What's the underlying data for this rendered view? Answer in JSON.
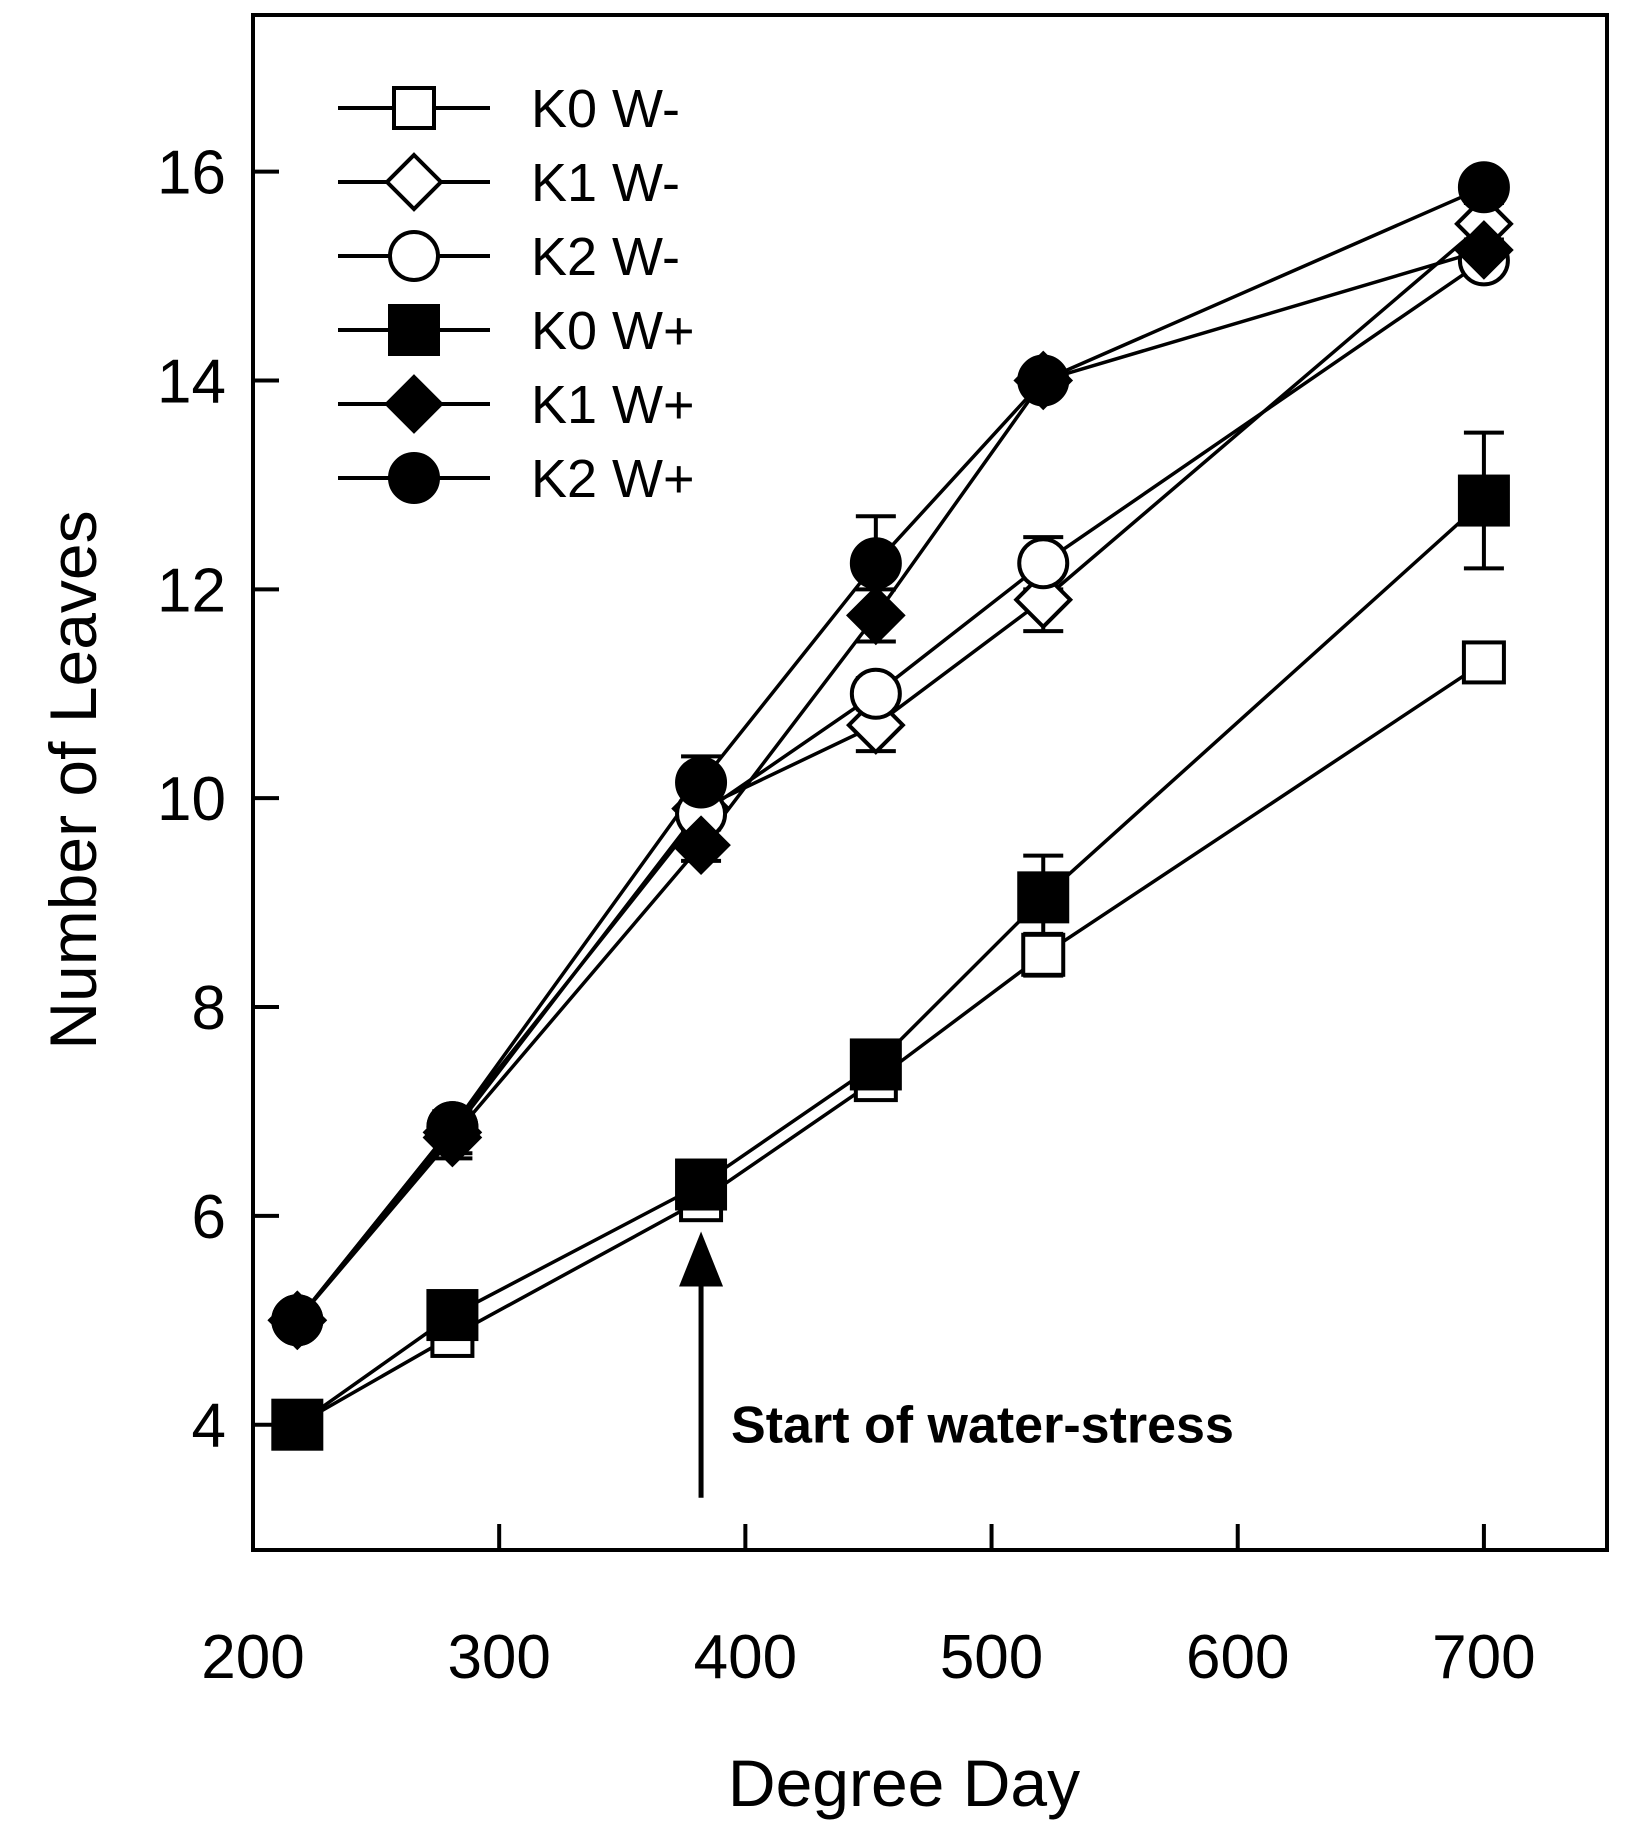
{
  "chart_data": {
    "type": "line",
    "title": "",
    "xlabel": "Degree Day",
    "ylabel": "Number of Leaves",
    "xlim": [
      200,
      750
    ],
    "ylim": [
      2.8,
      17.5
    ],
    "xticks": [
      200,
      300,
      400,
      500,
      600,
      700
    ],
    "yticks": [
      4,
      6,
      8,
      10,
      12,
      14,
      16
    ],
    "grid": false,
    "legend_position": "top-left",
    "series": [
      {
        "name": "K0 W-",
        "marker": "square",
        "filled": false,
        "points": [
          {
            "x": 218,
            "y": 4.0,
            "err": 0.05
          },
          {
            "x": 281,
            "y": 4.85,
            "err": 0.1
          },
          {
            "x": 382,
            "y": 6.15,
            "err": 0.1
          },
          {
            "x": 453,
            "y": 7.3,
            "err": 0.15
          },
          {
            "x": 521,
            "y": 8.5,
            "err": 0.2
          },
          {
            "x": 700,
            "y": 11.3,
            "err": 0.15
          }
        ]
      },
      {
        "name": "K1 W-",
        "marker": "diamond",
        "filled": false,
        "points": [
          {
            "x": 218,
            "y": 5.0,
            "err": 0.05
          },
          {
            "x": 281,
            "y": 6.8,
            "err": 0.2
          },
          {
            "x": 382,
            "y": 9.9,
            "err": 0.15
          },
          {
            "x": 453,
            "y": 10.7,
            "err": 0.25
          },
          {
            "x": 521,
            "y": 11.9,
            "err": 0.3
          },
          {
            "x": 700,
            "y": 15.5,
            "err": 0.2
          }
        ]
      },
      {
        "name": "K2 W-",
        "marker": "circle",
        "filled": false,
        "points": [
          {
            "x": 218,
            "y": 5.0,
            "err": 0.05
          },
          {
            "x": 281,
            "y": 6.85,
            "err": 0.15
          },
          {
            "x": 382,
            "y": 9.85,
            "err": 0.15
          },
          {
            "x": 453,
            "y": 11.0,
            "err": 0.15
          },
          {
            "x": 521,
            "y": 12.25,
            "err": 0.25
          },
          {
            "x": 700,
            "y": 15.15,
            "err": 0.1
          }
        ]
      },
      {
        "name": "K0 W+",
        "marker": "square",
        "filled": true,
        "points": [
          {
            "x": 218,
            "y": 4.0,
            "err": 0.05
          },
          {
            "x": 281,
            "y": 5.05,
            "err": 0.1
          },
          {
            "x": 382,
            "y": 6.3,
            "err": 0.1
          },
          {
            "x": 453,
            "y": 7.45,
            "err": 0.2
          },
          {
            "x": 521,
            "y": 9.05,
            "err": 0.4
          },
          {
            "x": 700,
            "y": 12.85,
            "err": 0.65
          }
        ]
      },
      {
        "name": "K1 W+",
        "marker": "diamond",
        "filled": true,
        "points": [
          {
            "x": 218,
            "y": 5.0,
            "err": 0.05
          },
          {
            "x": 281,
            "y": 6.75,
            "err": 0.2
          },
          {
            "x": 382,
            "y": 9.55,
            "err": 0.15
          },
          {
            "x": 453,
            "y": 11.75,
            "err": 0.25
          },
          {
            "x": 521,
            "y": 14.0,
            "err": 0.05
          },
          {
            "x": 700,
            "y": 15.25,
            "err": 0.1
          }
        ]
      },
      {
        "name": "K2 W+",
        "marker": "circle",
        "filled": true,
        "points": [
          {
            "x": 218,
            "y": 5.0,
            "err": 0.05
          },
          {
            "x": 281,
            "y": 6.85,
            "err": 0.15
          },
          {
            "x": 382,
            "y": 10.15,
            "err": 0.25
          },
          {
            "x": 453,
            "y": 12.25,
            "err": 0.45
          },
          {
            "x": 521,
            "y": 14.0,
            "err": 0.05
          },
          {
            "x": 700,
            "y": 15.85,
            "err": 0.1
          }
        ]
      }
    ],
    "annotations": [
      {
        "text": "Start of water-stress",
        "x": 382,
        "arrow_from_y": 3.3,
        "arrow_to_y": 5.85
      }
    ]
  }
}
